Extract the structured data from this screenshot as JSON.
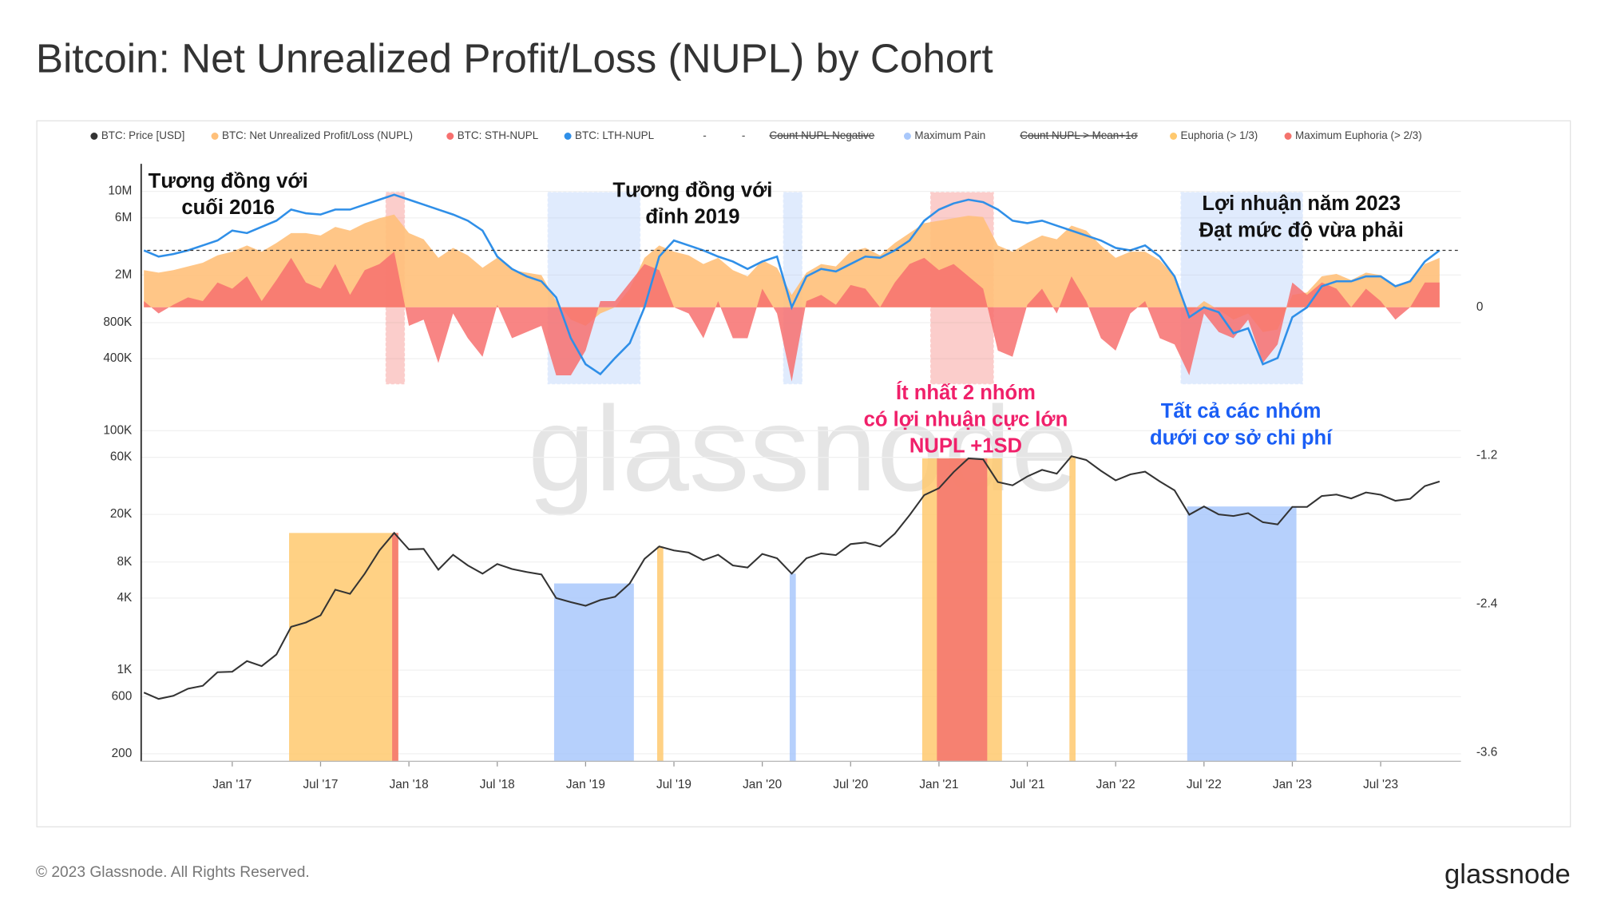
{
  "chart_data": {
    "type": "line",
    "title": "Bitcoin: Net Unrealized Profit/Loss (NUPL) by Cohort",
    "x": [
      "2016-07",
      "2016-08",
      "2016-09",
      "2016-10",
      "2016-11",
      "2016-12",
      "2017-01",
      "2017-02",
      "2017-03",
      "2017-04",
      "2017-05",
      "2017-06",
      "2017-07",
      "2017-08",
      "2017-09",
      "2017-10",
      "2017-11",
      "2017-12",
      "2018-01",
      "2018-02",
      "2018-03",
      "2018-04",
      "2018-05",
      "2018-06",
      "2018-07",
      "2018-08",
      "2018-09",
      "2018-10",
      "2018-11",
      "2018-12",
      "2019-01",
      "2019-02",
      "2019-03",
      "2019-04",
      "2019-05",
      "2019-06",
      "2019-07",
      "2019-08",
      "2019-09",
      "2019-10",
      "2019-11",
      "2019-12",
      "2020-01",
      "2020-02",
      "2020-03",
      "2020-04",
      "2020-05",
      "2020-06",
      "2020-07",
      "2020-08",
      "2020-09",
      "2020-10",
      "2020-11",
      "2020-12",
      "2021-01",
      "2021-02",
      "2021-03",
      "2021-04",
      "2021-05",
      "2021-06",
      "2021-07",
      "2021-08",
      "2021-09",
      "2021-10",
      "2021-11",
      "2021-12",
      "2022-01",
      "2022-02",
      "2022-03",
      "2022-04",
      "2022-05",
      "2022-06",
      "2022-07",
      "2022-08",
      "2022-09",
      "2022-10",
      "2022-11",
      "2022-12",
      "2023-01",
      "2023-02",
      "2023-03",
      "2023-04",
      "2023-05",
      "2023-06",
      "2023-07",
      "2023-08",
      "2023-09",
      "2023-10",
      "2023-11"
    ],
    "series": [
      {
        "name": "BTC: Price [USD]",
        "color": "#333333",
        "kind": "line",
        "values": [
          650,
          575,
          610,
          700,
          740,
          960,
          970,
          1190,
          1080,
          1350,
          2300,
          2500,
          2870,
          4700,
          4340,
          6400,
          10000,
          14000,
          10200,
          10300,
          6900,
          9200,
          7500,
          6400,
          7700,
          7000,
          6600,
          6300,
          4000,
          3700,
          3450,
          3850,
          4100,
          5300,
          8500,
          10800,
          10000,
          9600,
          8300,
          9200,
          7500,
          7200,
          9350,
          8600,
          6400,
          8600,
          9450,
          9140,
          11300,
          11650,
          10780,
          13800,
          19700,
          29000,
          33100,
          45200,
          58800,
          57700,
          37300,
          35000,
          41500,
          47100,
          43800,
          61300,
          57000,
          46300,
          38500,
          43200,
          45500,
          37700,
          31800,
          19900,
          23300,
          20000,
          19400,
          20500,
          17200,
          16500,
          23100,
          23100,
          28500,
          29300,
          27200,
          30500,
          29200,
          26000,
          27000,
          34500,
          37700
        ]
      },
      {
        "name": "BTC: Net Unrealized Profit/Loss (NUPL)",
        "color": "#ffc07a",
        "kind": "area",
        "axis": "y2",
        "values": [
          0.3,
          0.28,
          0.3,
          0.33,
          0.36,
          0.42,
          0.45,
          0.5,
          0.45,
          0.52,
          0.6,
          0.6,
          0.58,
          0.65,
          0.62,
          0.68,
          0.72,
          0.75,
          0.6,
          0.55,
          0.4,
          0.48,
          0.42,
          0.32,
          0.4,
          0.3,
          0.28,
          0.26,
          0.05,
          -0.1,
          -0.15,
          -0.05,
          0.0,
          0.15,
          0.4,
          0.5,
          0.45,
          0.42,
          0.35,
          0.4,
          0.3,
          0.25,
          0.38,
          0.32,
          0.1,
          0.28,
          0.35,
          0.33,
          0.45,
          0.48,
          0.42,
          0.52,
          0.6,
          0.68,
          0.7,
          0.72,
          0.74,
          0.73,
          0.5,
          0.45,
          0.52,
          0.58,
          0.55,
          0.66,
          0.62,
          0.5,
          0.4,
          0.45,
          0.45,
          0.38,
          0.25,
          -0.05,
          0.05,
          -0.02,
          -0.1,
          -0.05,
          -0.2,
          -0.18,
          0.1,
          0.12,
          0.25,
          0.27,
          0.22,
          0.28,
          0.26,
          0.18,
          0.2,
          0.35,
          0.4
        ]
      },
      {
        "name": "BTC: STH-NUPL",
        "color": "#f7706f",
        "kind": "area",
        "axis": "y2",
        "values": [
          0.05,
          -0.05,
          0.02,
          0.08,
          0.05,
          0.2,
          0.15,
          0.25,
          0.05,
          0.22,
          0.4,
          0.2,
          0.15,
          0.35,
          0.1,
          0.3,
          0.35,
          0.45,
          -0.15,
          -0.1,
          -0.45,
          -0.05,
          -0.25,
          -0.4,
          0.02,
          -0.25,
          -0.2,
          -0.15,
          -0.55,
          -0.55,
          -0.35,
          0.05,
          0.05,
          0.2,
          0.35,
          0.3,
          0.0,
          -0.05,
          -0.25,
          0.05,
          -0.25,
          -0.25,
          0.15,
          -0.05,
          -0.6,
          0.05,
          0.1,
          0.02,
          0.18,
          0.15,
          0.0,
          0.2,
          0.35,
          0.4,
          0.3,
          0.35,
          0.25,
          0.15,
          -0.35,
          -0.4,
          0.02,
          0.15,
          -0.05,
          0.25,
          0.05,
          -0.25,
          -0.35,
          -0.05,
          0.05,
          -0.25,
          -0.3,
          -0.55,
          -0.05,
          -0.2,
          -0.25,
          -0.1,
          -0.45,
          -0.3,
          0.2,
          0.1,
          0.2,
          0.15,
          0.0,
          0.15,
          0.05,
          -0.1,
          0.0,
          0.2,
          0.2
        ]
      },
      {
        "name": "BTC: LTH-NUPL",
        "color": "#2f8fe8",
        "kind": "line",
        "axis": "y2",
        "values": [
          0.46,
          0.41,
          0.43,
          0.46,
          0.5,
          0.54,
          0.62,
          0.6,
          0.65,
          0.7,
          0.79,
          0.76,
          0.75,
          0.79,
          0.79,
          0.83,
          0.87,
          0.91,
          0.87,
          0.83,
          0.79,
          0.75,
          0.7,
          0.62,
          0.41,
          0.31,
          0.25,
          0.21,
          0.08,
          -0.25,
          -0.46,
          -0.54,
          -0.41,
          -0.29,
          0.0,
          0.41,
          0.54,
          0.5,
          0.46,
          0.41,
          0.37,
          0.31,
          0.37,
          0.41,
          0.0,
          0.25,
          0.31,
          0.29,
          0.35,
          0.41,
          0.4,
          0.46,
          0.54,
          0.7,
          0.79,
          0.84,
          0.87,
          0.85,
          0.79,
          0.7,
          0.68,
          0.7,
          0.66,
          0.62,
          0.58,
          0.54,
          0.48,
          0.46,
          0.5,
          0.41,
          0.25,
          -0.08,
          0.0,
          -0.04,
          -0.21,
          -0.17,
          -0.46,
          -0.41,
          -0.08,
          0.0,
          0.17,
          0.21,
          0.21,
          0.25,
          0.25,
          0.17,
          0.21,
          0.37,
          0.46
        ]
      }
    ],
    "extra_legend": [
      {
        "name": "-"
      },
      {
        "name": "-"
      },
      {
        "name": "Count NUPL Negative",
        "hidden": true
      },
      {
        "name": "Maximum Pain",
        "color": "#a9c8fb",
        "periods": [
          [
            "2018-11",
            "2019-04"
          ],
          [
            "2020-03",
            "2020-03"
          ],
          [
            "2022-06",
            "2023-01"
          ]
        ]
      },
      {
        "name": "Count NUPL > Mean+1σ",
        "hidden": true
      },
      {
        "name": "Euphoria (> 1/3)",
        "color": "#ffc96e",
        "periods": [
          [
            "2017-05",
            "2017-12"
          ],
          [
            "2019-06",
            "2019-06"
          ],
          [
            "2020-12",
            "2021-05"
          ],
          [
            "2021-10",
            "2021-10"
          ]
        ]
      },
      {
        "name": "Maximum Euphoria (> 2/3)",
        "color": "#f4736d",
        "periods": [
          [
            "2017-12",
            "2017-12"
          ],
          [
            "2021-01",
            "2021-04"
          ]
        ]
      }
    ],
    "hline": 0.46,
    "log_scale": true,
    "grid": true,
    "ylim": [
      173,
      17000000
    ],
    "yticks": [
      {
        "value": 10000000,
        "label": "10M"
      },
      {
        "value": 6000000,
        "label": "6M"
      },
      {
        "value": 2000000,
        "label": "2M"
      },
      {
        "value": 800000,
        "label": "800K"
      },
      {
        "value": 400000,
        "label": "400K"
      },
      {
        "value": 100000,
        "label": "100K"
      },
      {
        "value": 60000,
        "label": "60K"
      },
      {
        "value": 20000,
        "label": "20K"
      },
      {
        "value": 8000,
        "label": "8K"
      },
      {
        "value": 4000,
        "label": "4K"
      },
      {
        "value": 1000,
        "label": "1K"
      },
      600,
      200
    ],
    "y2lim": [
      -3.67,
      1.16
    ],
    "y2ticks": [
      0,
      -1.2,
      -2.4,
      -3.6
    ],
    "xticks": [
      {
        "value": "2017-01",
        "label": "Jan '17"
      },
      {
        "value": "2017-07",
        "label": "Jul '17"
      },
      {
        "value": "2018-01",
        "label": "Jan '18"
      },
      {
        "value": "2018-07",
        "label": "Jul '18"
      },
      {
        "value": "2019-01",
        "label": "Jan '19"
      },
      {
        "value": "2019-07",
        "label": "Jul '19"
      },
      {
        "value": "2020-01",
        "label": "Jan '20"
      },
      {
        "value": "2020-07",
        "label": "Jul '20"
      },
      {
        "value": "2021-01",
        "label": "Jan '21"
      },
      {
        "value": "2021-07",
        "label": "Jul '21"
      },
      {
        "value": "2022-01",
        "label": "Jan '22"
      },
      {
        "value": "2022-07",
        "label": "Jul '22"
      },
      {
        "value": "2023-01",
        "label": "Jan '23"
      },
      {
        "value": "2023-07",
        "label": "Jul '23"
      }
    ],
    "annotations": [
      {
        "lines": [
          "Tương đồng với",
          "cuối 2016"
        ],
        "color": "#111111"
      },
      {
        "lines": [
          "Tương đồng với",
          "đỉnh 2019"
        ],
        "color": "#111111"
      },
      {
        "lines": [
          "Lợi nhuận năm 2023",
          "Đạt mức độ vừa phải"
        ],
        "color": "#111111"
      },
      {
        "lines": [
          "Ít nhất 2 nhóm",
          "có lợi nhuận cực lớn",
          "NUPL +1SD"
        ],
        "color": "#f0206a"
      },
      {
        "lines": [
          "Tất cả các nhóm",
          "dưới cơ sở chi phí"
        ],
        "color": "#1a5ef5"
      }
    ],
    "watermark": "glassnode",
    "footer": "© 2023 Glassnode. All Rights Reserved.",
    "logo": "glassnode"
  }
}
